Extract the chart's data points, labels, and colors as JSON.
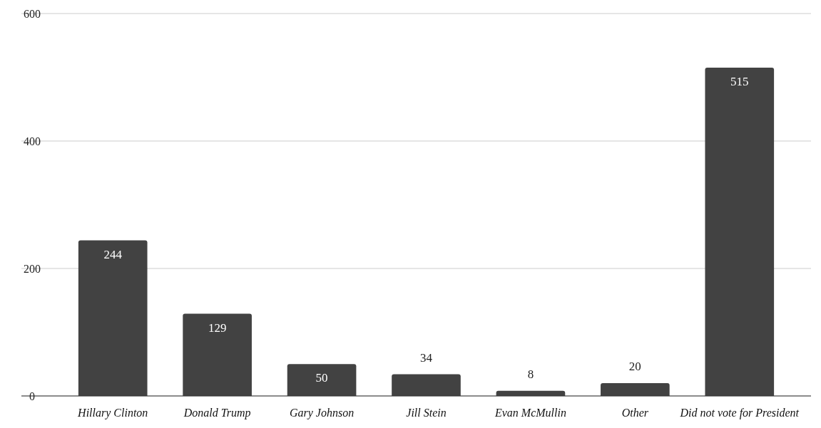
{
  "chart_data": {
    "type": "bar",
    "categories": [
      "Hillary Clinton",
      "Donald Trump",
      "Gary Johnson",
      "Jill Stein",
      "Evan McMullin",
      "Other",
      "Did not vote for President"
    ],
    "values": [
      244,
      129,
      50,
      34,
      8,
      20,
      515
    ],
    "color": "#424242",
    "ylim": [
      0,
      600
    ],
    "yticks": [
      0,
      200,
      400,
      600
    ],
    "grid": "y",
    "data_labels": true
  }
}
